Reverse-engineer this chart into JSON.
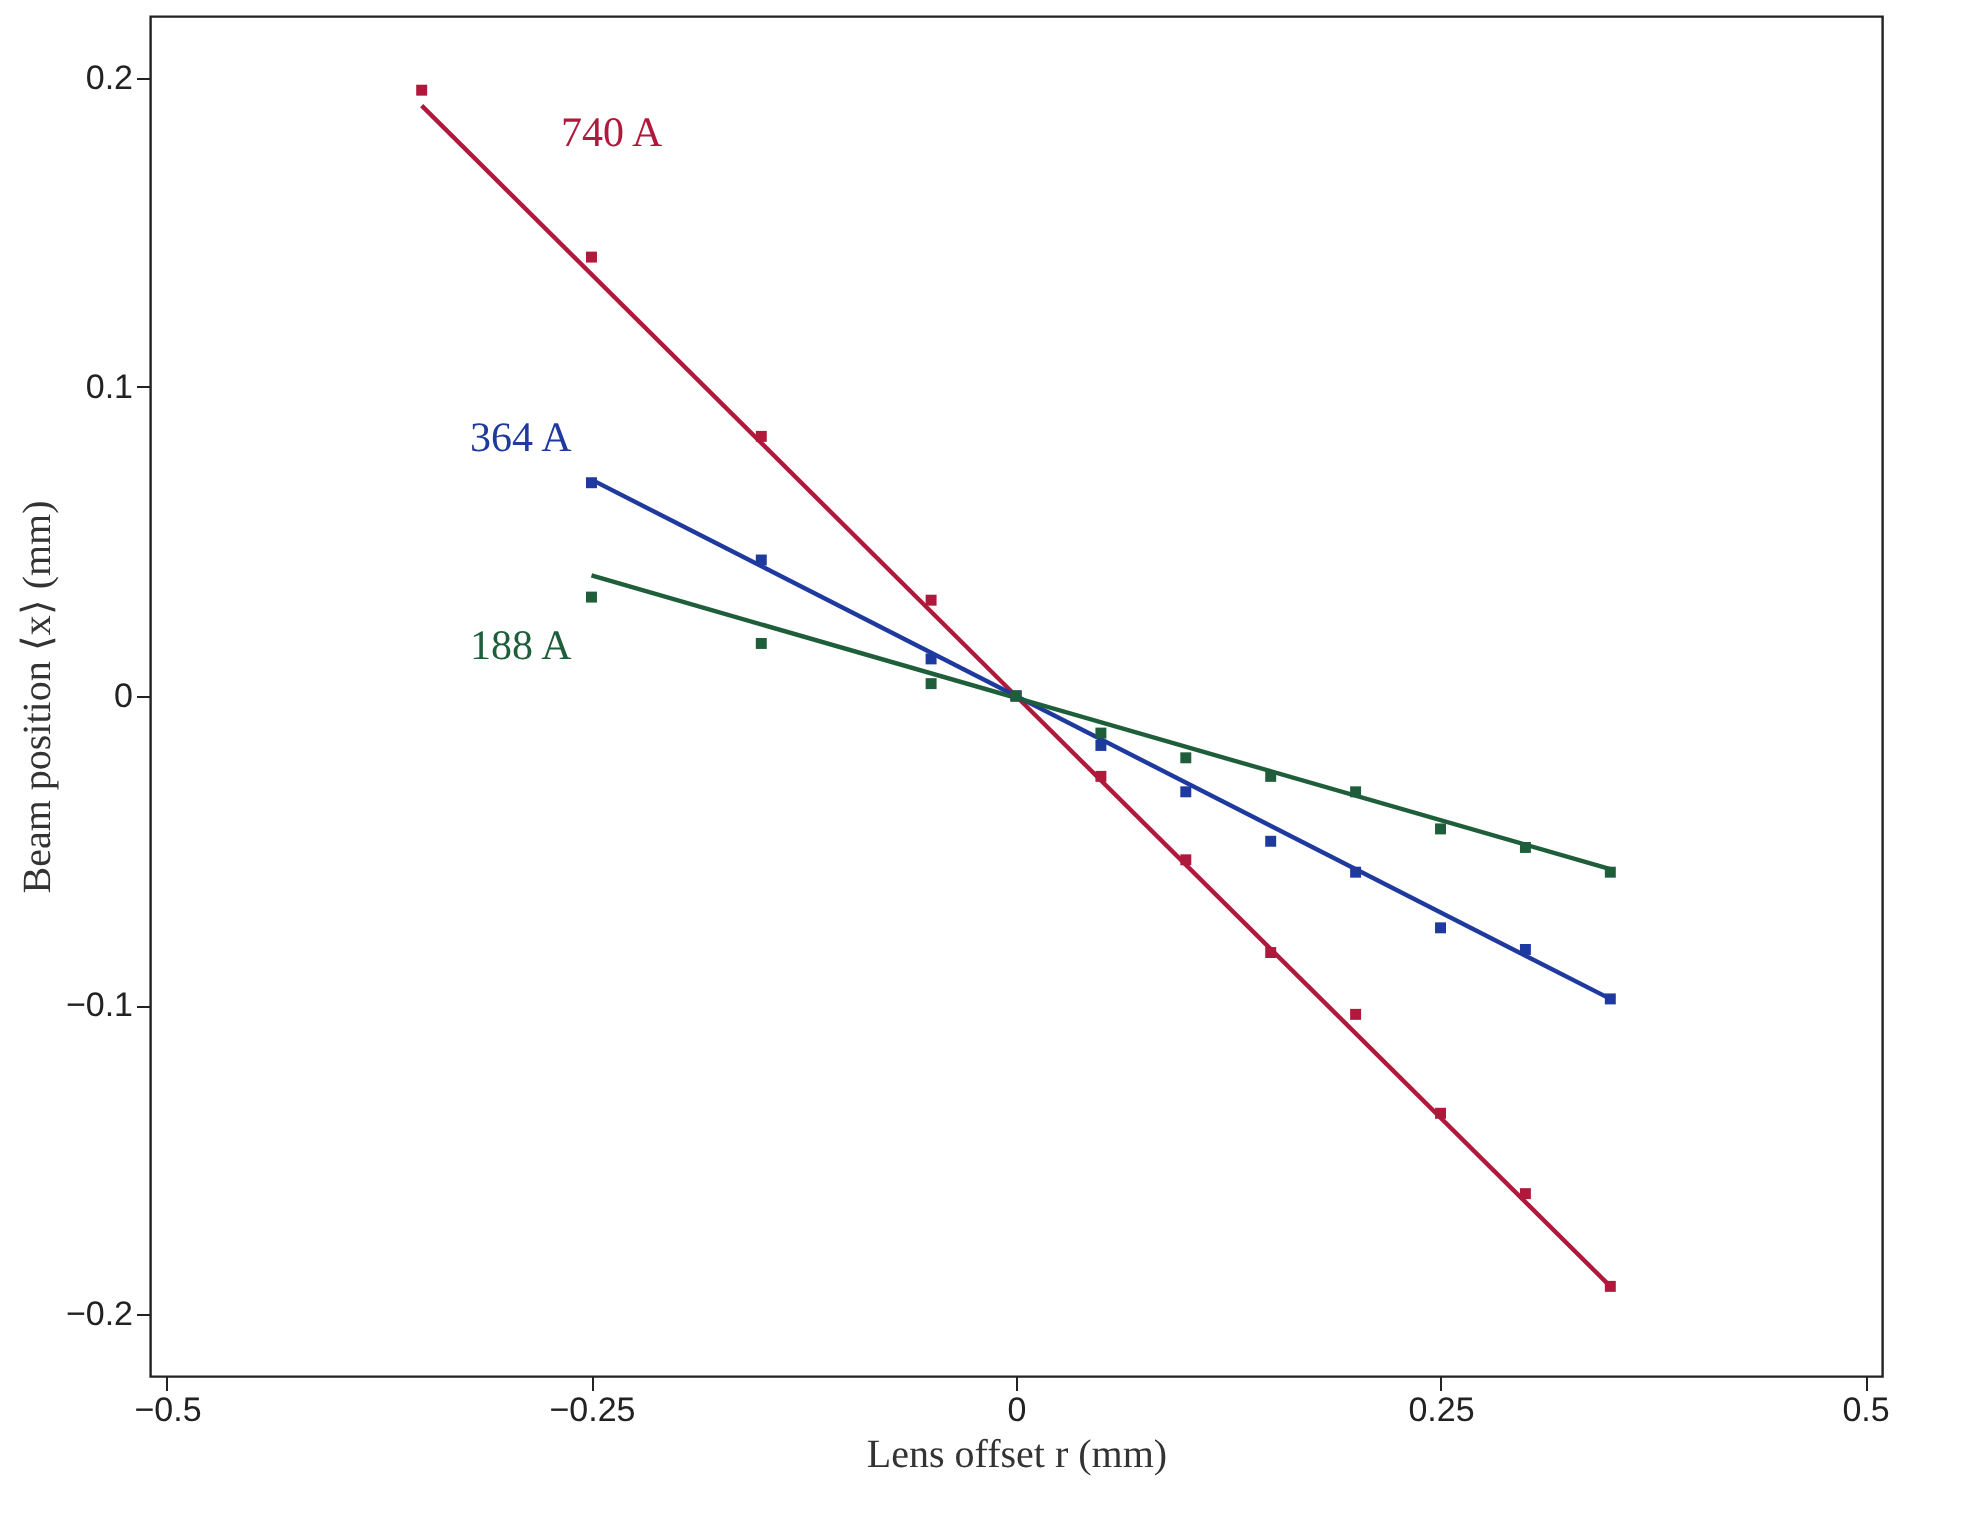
{
  "chart_data": {
    "type": "scatter",
    "xlabel": "Lens offset r (mm)",
    "ylabel": "Beam position ⟨x⟩ (mm)",
    "x": [
      -0.35,
      -0.25,
      -0.15,
      -0.05,
      0,
      0.05,
      0.1,
      0.15,
      0.2,
      0.25,
      0.3,
      0.35
    ],
    "series": [
      {
        "name": "740 A",
        "color": "#b0183c",
        "values": [
          0.196,
          0.142,
          0.084,
          0.031,
          0,
          -0.026,
          -0.053,
          -0.083,
          -0.103,
          -0.135,
          -0.161,
          -0.191
        ]
      },
      {
        "name": "364 A",
        "color": "#1f3a9e",
        "x": [
          -0.25,
          -0.15,
          -0.05,
          0,
          0.05,
          0.1,
          0.15,
          0.2,
          0.25,
          0.3,
          0.35
        ],
        "values": [
          0.069,
          0.044,
          0.012,
          0,
          -0.016,
          -0.031,
          -0.047,
          -0.057,
          -0.075,
          -0.082,
          -0.098
        ]
      },
      {
        "name": "188 A",
        "color": "#1e5e3a",
        "x": [
          -0.25,
          -0.15,
          -0.05,
          0,
          0.05,
          0.1,
          0.15,
          0.2,
          0.25,
          0.3,
          0.35
        ],
        "values": [
          0.032,
          0.017,
          0.004,
          0,
          -0.012,
          -0.02,
          -0.026,
          -0.031,
          -0.043,
          -0.049,
          -0.057
        ]
      },
      {
        "color": "#b0183c",
        "type": "line",
        "marker": "none",
        "x": [
          -0.35,
          0.35
        ],
        "values": [
          0.191,
          -0.191
        ]
      },
      {
        "color": "#1f3a9e",
        "type": "line",
        "marker": "none",
        "x": [
          -0.25,
          0.35
        ],
        "values": [
          0.07,
          -0.098
        ]
      },
      {
        "color": "#1e5e3a",
        "type": "line",
        "marker": "none",
        "x": [
          -0.25,
          0.35
        ],
        "values": [
          0.039,
          -0.056
        ]
      }
    ],
    "xlim": [
      -0.51,
      0.51
    ],
    "ylim": [
      -0.22,
      0.22
    ],
    "xticks": [
      -0.5,
      -0.25,
      0,
      0.25,
      0.5
    ],
    "yticks": [
      -0.2,
      -0.1,
      0,
      0.1,
      0.2
    ],
    "grid": false,
    "legend": false,
    "marker": "square",
    "line_style": "solid"
  }
}
